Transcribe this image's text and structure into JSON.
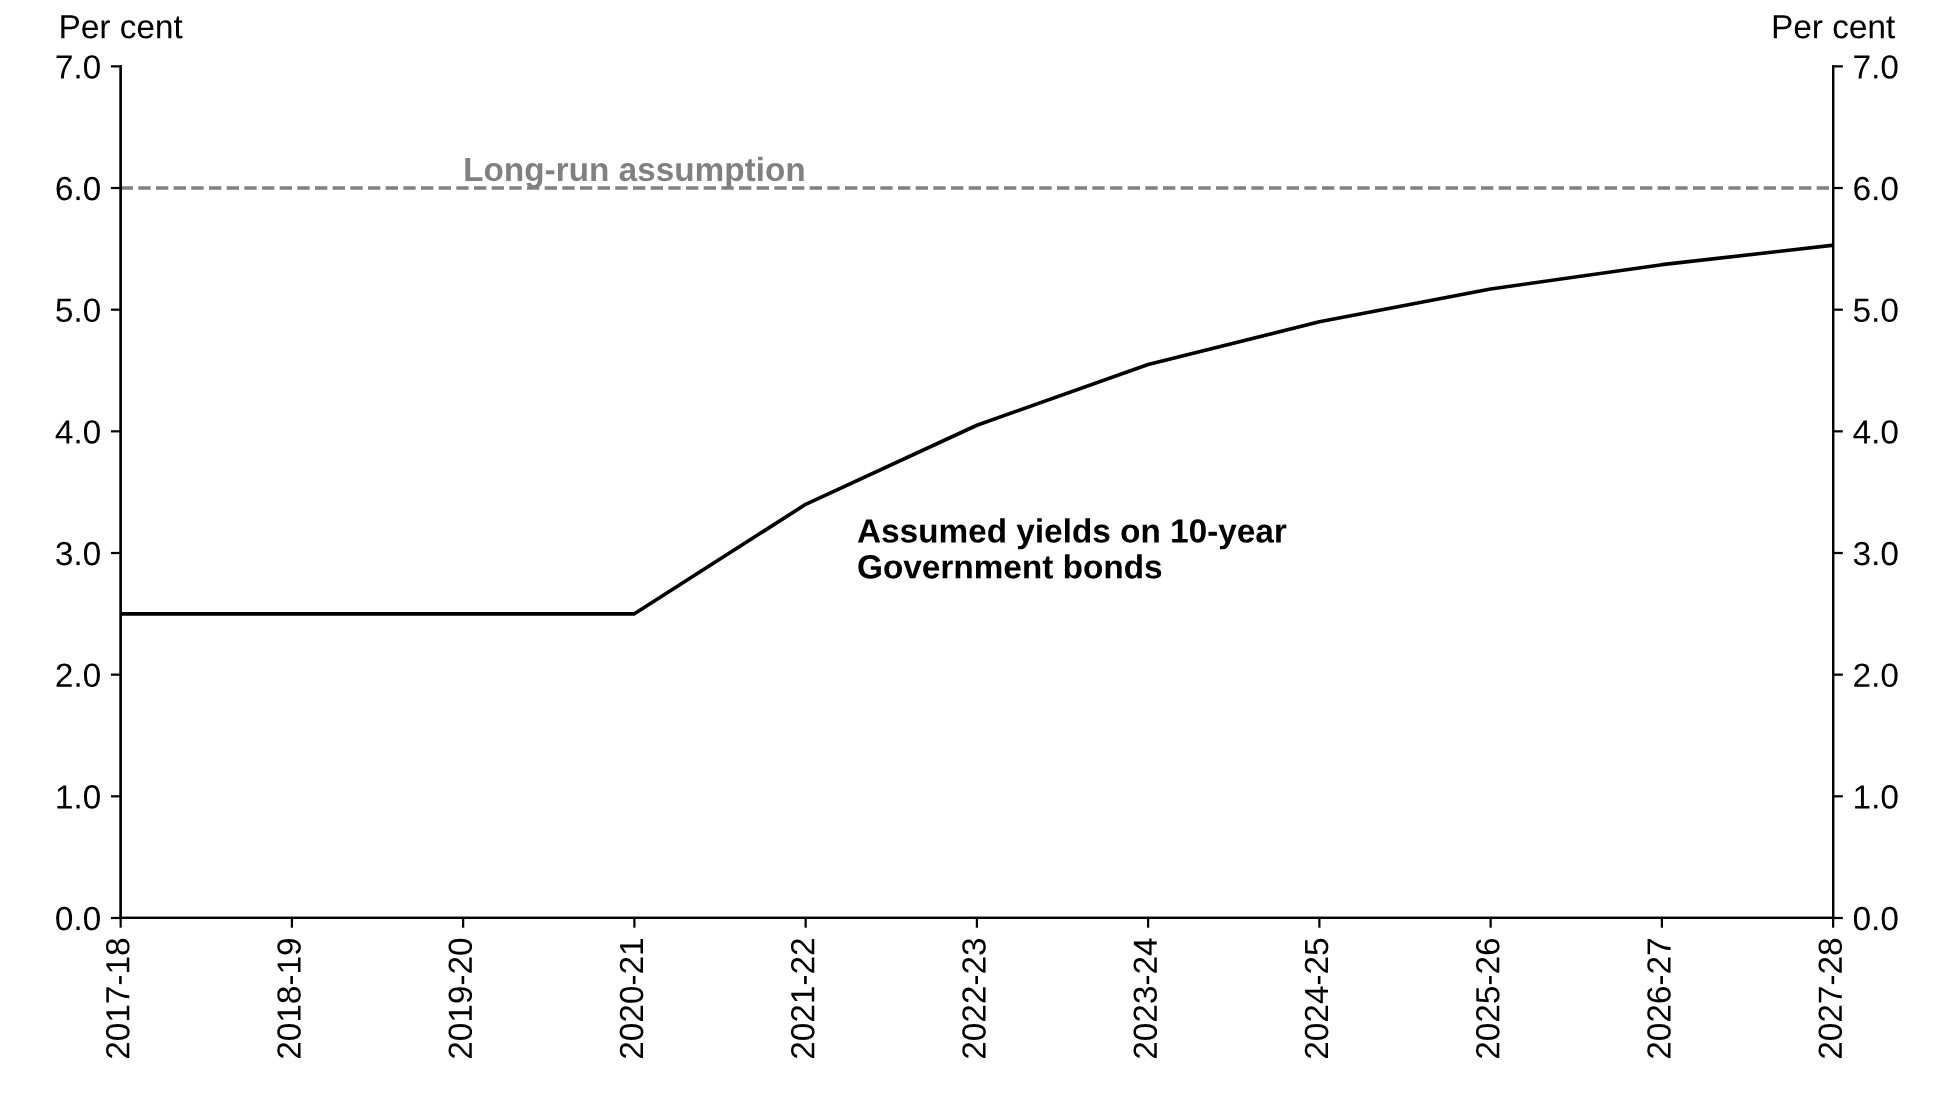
{
  "chart_data": {
    "type": "line",
    "categories": [
      "2017-18",
      "2018-19",
      "2019-20",
      "2020-21",
      "2021-22",
      "2022-23",
      "2023-24",
      "2024-25",
      "2025-26",
      "2026-27",
      "2027-28"
    ],
    "series": [
      {
        "color": "#000000",
        "values": [
          2.5,
          2.5,
          2.5,
          2.5,
          3.4,
          4.05,
          4.55,
          4.9,
          5.17,
          5.37,
          5.53
        ]
      }
    ],
    "ylabel": "Per cent",
    "y2label": "Per cent",
    "ylim": [
      0,
      7
    ],
    "y2lim": [
      0,
      7
    ],
    "yticks": [
      {
        "value": 0,
        "label": "0.0"
      },
      {
        "value": 1,
        "label": "1.0"
      },
      {
        "value": 2,
        "label": "2.0"
      },
      {
        "value": 3,
        "label": "3.0"
      },
      {
        "value": 4,
        "label": "4.0"
      },
      {
        "value": 5,
        "label": "5.0"
      },
      {
        "value": 6,
        "label": "6.0"
      },
      {
        "value": 7,
        "label": "7.0"
      }
    ],
    "y2ticks": [
      {
        "value": 0,
        "label": "0.0"
      },
      {
        "value": 1,
        "label": "1.0"
      },
      {
        "value": 2,
        "label": "2.0"
      },
      {
        "value": 3,
        "label": "3.0"
      },
      {
        "value": 4,
        "label": "4.0"
      },
      {
        "value": 5,
        "label": "5.0"
      },
      {
        "value": 6,
        "label": "6.0"
      },
      {
        "value": 7,
        "label": "7.0"
      }
    ],
    "ref_lines": [
      {
        "axis": "y",
        "value": 6,
        "label": "Long-run assumption",
        "color": "#808080",
        "line_style": "dashed"
      }
    ],
    "annotations": [
      "Assumed yields on 10-year\nGovernment bonds"
    ],
    "grid": false,
    "legend": false,
    "line_style": "solid",
    "marker": "none"
  }
}
